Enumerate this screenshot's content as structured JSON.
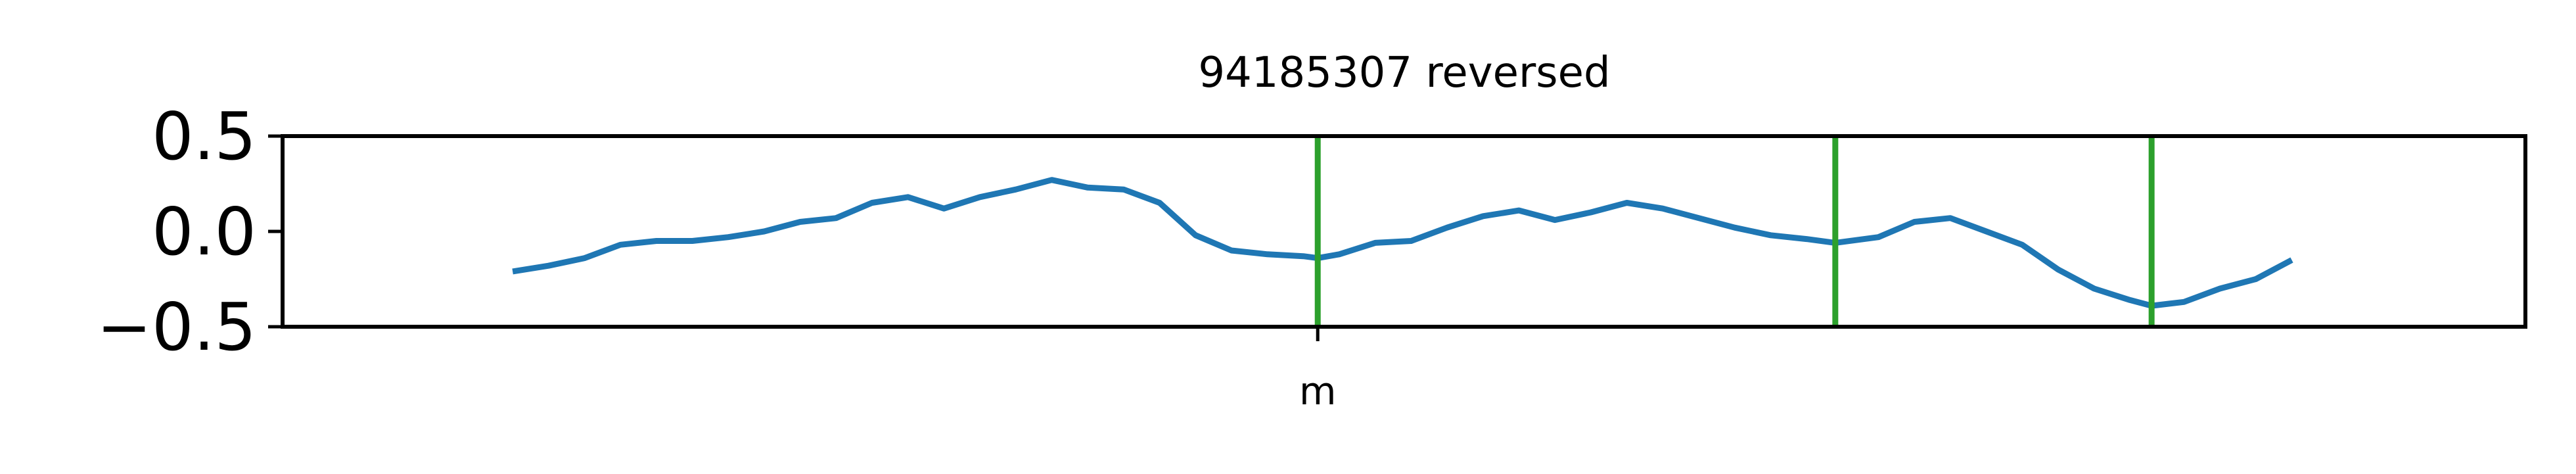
{
  "chart_data": {
    "type": "line",
    "title": "94185307 reversed",
    "xlabel": "",
    "ylabel": "",
    "ylim": [
      -0.5,
      0.5
    ],
    "xlim": [
      -0.128,
      1.12
    ],
    "yticks": [
      0.5,
      0.0,
      -0.5
    ],
    "ytick_labels": [
      "0.5",
      "0.0",
      "−0.5"
    ],
    "xticks": [
      0.448
    ],
    "xtick_labels": [
      "m"
    ],
    "grid": false,
    "colors": {
      "line": "#1f77b4",
      "vlines": "#2ca02c",
      "axes": "#000000"
    },
    "vlines": [
      0.448,
      0.736,
      0.912
    ],
    "series": [
      {
        "x": [
          0.0,
          0.02,
          0.04,
          0.06,
          0.08,
          0.1,
          0.12,
          0.14,
          0.16,
          0.18,
          0.2,
          0.22,
          0.24,
          0.26,
          0.28,
          0.3,
          0.32,
          0.34,
          0.36,
          0.38,
          0.4,
          0.42,
          0.44,
          0.448,
          0.46,
          0.48,
          0.5,
          0.52,
          0.54,
          0.56,
          0.58,
          0.6,
          0.62,
          0.64,
          0.66,
          0.68,
          0.7,
          0.72,
          0.736,
          0.76,
          0.78,
          0.8,
          0.82,
          0.84,
          0.86,
          0.88,
          0.9,
          0.912,
          0.93,
          0.95,
          0.97,
          0.99
        ],
        "y": [
          -0.21,
          -0.18,
          -0.14,
          -0.07,
          -0.05,
          -0.05,
          -0.03,
          0.0,
          0.05,
          0.07,
          0.15,
          0.18,
          0.12,
          0.18,
          0.22,
          0.27,
          0.23,
          0.22,
          0.15,
          -0.02,
          -0.1,
          -0.12,
          -0.13,
          -0.14,
          -0.12,
          -0.06,
          -0.05,
          0.02,
          0.08,
          0.11,
          0.06,
          0.1,
          0.15,
          0.12,
          0.07,
          0.02,
          -0.02,
          -0.04,
          -0.06,
          -0.03,
          0.05,
          0.07,
          0.0,
          -0.07,
          -0.2,
          -0.3,
          -0.36,
          -0.39,
          -0.37,
          -0.3,
          -0.25,
          -0.15
        ]
      }
    ]
  }
}
